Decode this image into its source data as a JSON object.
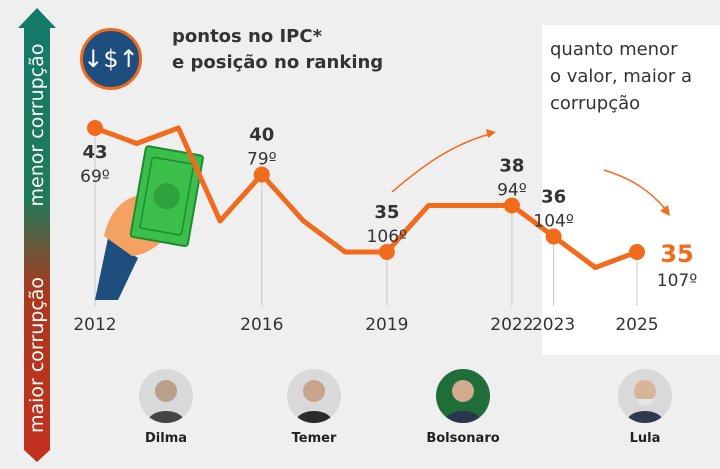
{
  "legend": {
    "line1": "pontos no IPC*",
    "line2": "e posição no ranking"
  },
  "badge": {
    "icon": "dollar-arrows-icon",
    "glyph": "↓$↑"
  },
  "side": {
    "top_label": "menor corrupção",
    "bottom_label": "maior corrupção"
  },
  "note": {
    "line1": "quanto menor",
    "line2": "o valor, maior a",
    "line3": "corrupção"
  },
  "colors": {
    "line": "#f26b1d",
    "text": "#333333",
    "accent_red": "#c4301f",
    "accent_green": "#127a6a",
    "badge": "#1d4e7e"
  },
  "chart_data": {
    "type": "line",
    "title": "pontos no IPC*",
    "xlabel": "",
    "ylabel": "",
    "x_ticks": [
      "2012",
      "2016",
      "2019",
      "2022",
      "2023",
      "2025"
    ],
    "ylim": [
      33,
      44
    ],
    "grid": false,
    "series": [
      {
        "name": "pontos no IPC",
        "x": [
          2012,
          2013,
          2014,
          2015,
          2016,
          2017,
          2018,
          2019,
          2020,
          2021,
          2022,
          2023,
          2024,
          2025
        ],
        "values": [
          43,
          42,
          43,
          37,
          40,
          37,
          35,
          35,
          38,
          38,
          38,
          36,
          34,
          35
        ]
      }
    ],
    "labels": [
      {
        "year": 2012,
        "score": "43",
        "rank": "69º"
      },
      {
        "year": 2016,
        "score": "40",
        "rank": "79º"
      },
      {
        "year": 2019,
        "score": "35",
        "rank": "106º"
      },
      {
        "year": 2022,
        "score": "38",
        "rank": "94º"
      },
      {
        "year": 2023,
        "score": "36",
        "rank": "104º"
      },
      {
        "year": 2025,
        "score": "35",
        "rank": "107º"
      }
    ]
  },
  "people": [
    {
      "name": "Dilma"
    },
    {
      "name": "Temer"
    },
    {
      "name": "Bolsonaro"
    },
    {
      "name": "Lula"
    }
  ]
}
